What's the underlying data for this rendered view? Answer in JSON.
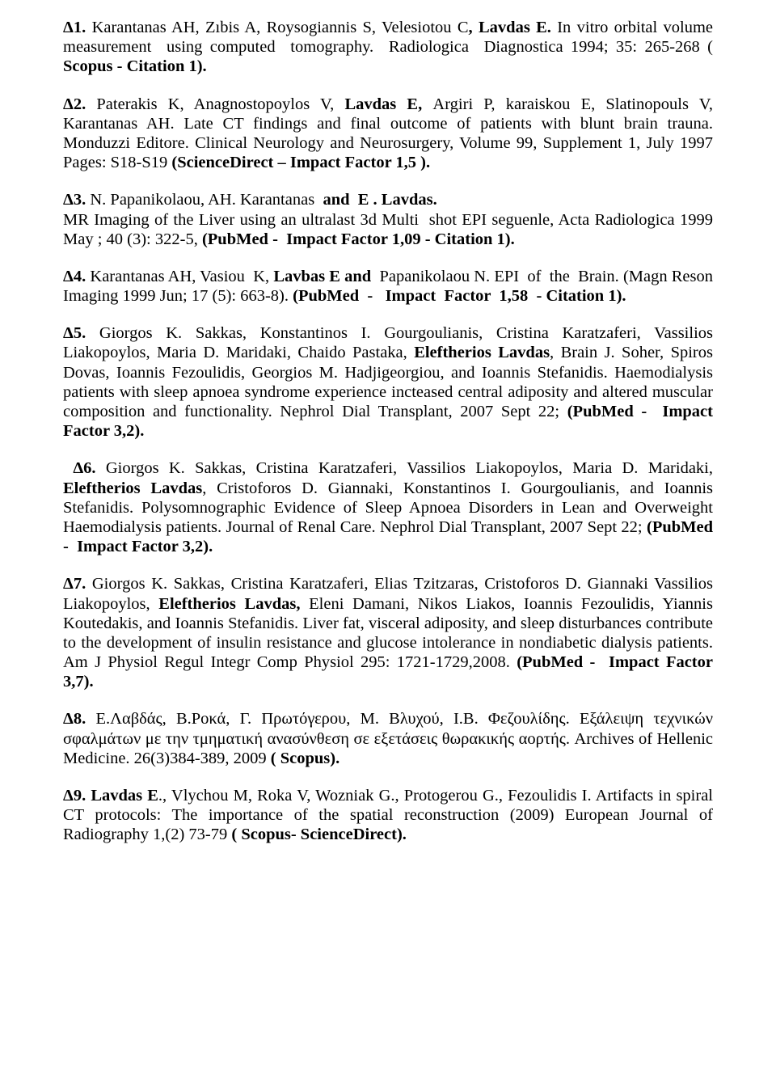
{
  "entries": [
    {
      "runs": [
        {
          "t": "Δ1. ",
          "b": true
        },
        {
          "t": "Karantanas AH, Zıbis A, Roysogiannis S, Velesiotou C"
        },
        {
          "t": ", Lavdas E. ",
          "b": true
        },
        {
          "t": "In vitro orbital volume measurement  using computed  tomography.  Radiologica  Diagnostica 1994; 35: 265-268 ( "
        },
        {
          "t": "Scopus - Citation 1).",
          "b": true
        }
      ]
    },
    {
      "runs": [
        {
          "t": "Δ2. ",
          "b": true
        },
        {
          "t": "Paterakis K, Anagnostopoylos V, "
        },
        {
          "t": "Lavdas E, ",
          "b": true
        },
        {
          "t": "Argiri P, karaiskou E, Slatinopouls V, Karantanas AH. Late CT findings and final outcome of patients with blunt brain trauna. Monduzzi Editore. Clinical Neurology and Neurosurgery, Volume 99, Supplement 1, July 1997 Pages: S18-S19 "
        },
        {
          "t": "(ScienceDirect – Impact Factor 1,5 ).",
          "b": true
        }
      ]
    },
    {
      "runs": [
        {
          "t": "Δ3. ",
          "b": true
        },
        {
          "t": "N. Papanikolaou, AH. Karantanas "
        },
        {
          "t": " and  E . Lavdas.",
          "b": true
        },
        {
          "t": "\nMR Imaging of the Liver using an ultralast 3d Multi  shot EPI seguenle, Acta Radiologica 1999 May ; 40 (3): 322-5, "
        },
        {
          "t": "(PubMed -  Impact Factor 1,09 - Citation 1).",
          "b": true
        }
      ]
    },
    {
      "runs": [
        {
          "t": "Δ4. ",
          "b": true
        },
        {
          "t": "Karantanas AH, Vasiou  K, "
        },
        {
          "t": "Lavbas E and ",
          "b": true
        },
        {
          "t": " Papanikolaou N. EPI  of  the  Brain. (Magn Reson Imaging 1999 Jun; 17 (5): 663-8). "
        },
        {
          "t": "(PubMed  -   Impact  Factor  1,58  - Citation 1).",
          "b": true
        }
      ]
    },
    {
      "runs": [
        {
          "t": "Δ5. ",
          "b": true
        },
        {
          "t": "Giorgos K. Sakkas, Konstantinos I. Gourgoulianis, Cristina Karatzaferi, Vassilios Liakopoylos, Maria D. Maridaki, Chaido Pastaka, "
        },
        {
          "t": "Eleftherios Lavdas",
          "b": true
        },
        {
          "t": ", Brain J. Soher, Spiros Dovas, Ioannis Fezoulidis, Georgios M. Hadjigeorgiou, and Ioannis Stefanidis. Haemodialysis patients with sleep apnoea syndrome experience incteased central adiposity and altered muscular composition and functionality. Nephrol Dial Transplant, 2007 Sept 22; "
        },
        {
          "t": "(PubMed -  Impact Factor 3,2).",
          "b": true
        }
      ]
    },
    {
      "runs": [
        {
          "t": " Δ6. ",
          "b": true
        },
        {
          "t": "Giorgos K. Sakkas, Cristina Karatzaferi, Vassilios Liakopoylos, Maria D. Maridaki, "
        },
        {
          "t": "Eleftherios Lavdas",
          "b": true
        },
        {
          "t": ", Cristoforos D. Giannaki, Konstantinos I. Gourgoulianis, and Ioannis Stefanidis. Polysomnographic Evidence of Sleep Apnoea Disorders in Lean and Overweight Haemodialysis patients. Journal of Renal Care. Nephrol Dial Transplant, 2007 Sept 22; "
        },
        {
          "t": "(PubMed -  Impact Factor 3,2).",
          "b": true
        }
      ]
    },
    {
      "runs": [
        {
          "t": "Δ7. ",
          "b": true
        },
        {
          "t": "Giorgos K. Sakkas, Cristina Karatzaferi, Elias Tzitzaras, Cristoforos D. Giannaki Vassilios Liakopoylos, "
        },
        {
          "t": "Eleftherios Lavdas, ",
          "b": true
        },
        {
          "t": "Eleni Damani, Nikos Liakos, Ioannis Fezoulidis, Yiannis Koutedakis, and Ioannis Stefanidis. Liver fat, visceral adiposity, and sleep disturbances contribute to the development of insulin resistance and glucose intolerance in nondiabetic dialysis patients. Am J Physiol Regul Integr Comp Physiol 295: 1721-1729,2008. "
        },
        {
          "t": "(PubMed -  Impact Factor 3,7).",
          "b": true
        }
      ]
    },
    {
      "runs": [
        {
          "t": "Δ8. ",
          "b": true
        },
        {
          "t": "Ε.Λαβδάς, Β.Ροκά, Γ. Πρωτόγερου, Μ. Βλυχού, Ι.Β. Φεζουλίδης. Εξάλειψη τεχνικών σφαλμάτων με την τμηματική ανασύνθεση σε εξετάσεις θωρακικής αορτής. Archives of Hellenic Medicine. 26(3)384-389, 2009 "
        },
        {
          "t": "( Scopus).",
          "b": true
        }
      ]
    },
    {
      "runs": [
        {
          "t": "Δ9. Lavdas E",
          "b": true
        },
        {
          "t": "., Vlychou M, Roka V, Wozniak G., Protogerou G., Fezoulidis I. Artifacts in spiral CT protocols: The importance of the spatial reconstruction (2009) European Journal of Radiography 1,(2) 73-79 "
        },
        {
          "t": "( Scopus- ScienceDirect).",
          "b": true
        }
      ]
    }
  ]
}
